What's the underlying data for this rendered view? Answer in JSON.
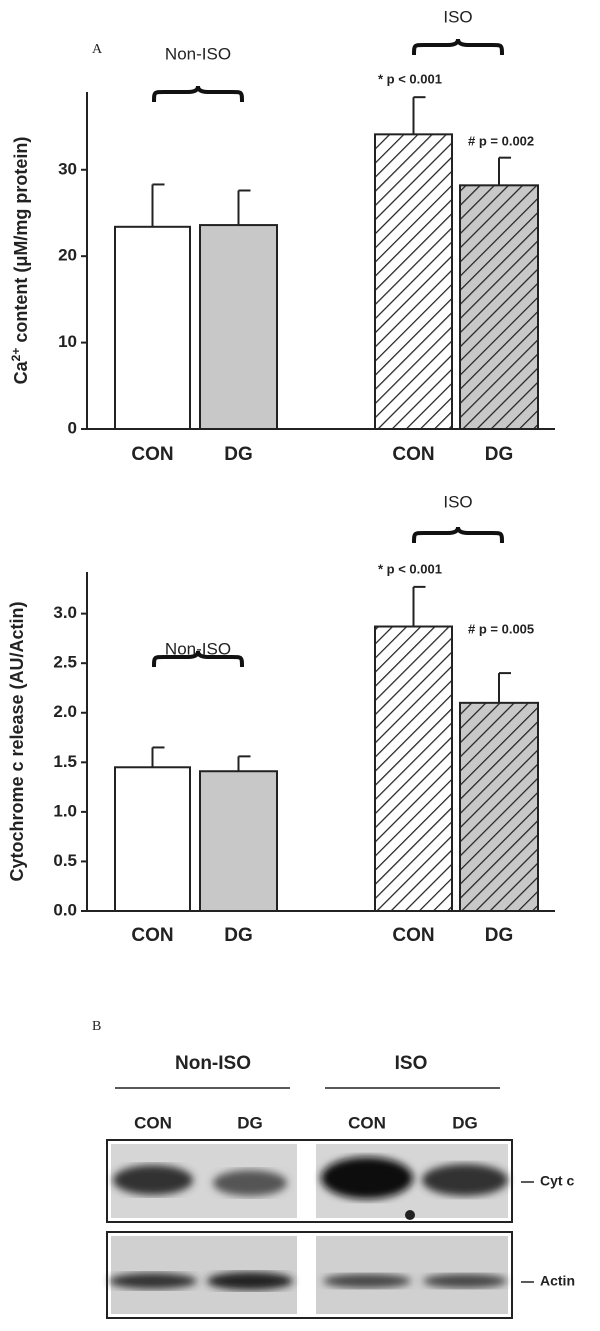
{
  "chart_data": [
    {
      "type": "bar",
      "panel_label": "A",
      "ylabel": [
        "Ca",
        "2+",
        " content (μM/mg protein)"
      ],
      "categories": [
        "CON",
        "DG",
        "CON",
        "DG"
      ],
      "values": [
        23.4,
        23.6,
        34.1,
        28.2
      ],
      "errors": [
        4.9,
        4.0,
        4.3,
        3.2
      ],
      "colors": [
        "#ffffff",
        "#c8c8c8",
        "#ffffff",
        "#c8c8c8"
      ],
      "hatched": [
        false,
        false,
        true,
        true
      ],
      "groups": [
        "Non-ISO",
        "ISO"
      ],
      "annotations": [
        "* p < 0.001",
        "# p = 0.002"
      ],
      "ylim": [
        0,
        39
      ],
      "yticks": [
        0,
        10,
        20,
        30
      ]
    },
    {
      "type": "bar",
      "ylabel": [
        "Cytochrome c release (AU/Actin)"
      ],
      "categories": [
        "CON",
        "DG",
        "CON",
        "DG"
      ],
      "values": [
        1.45,
        1.41,
        2.87,
        2.1
      ],
      "errors": [
        0.2,
        0.15,
        0.4,
        0.3
      ],
      "colors": [
        "#ffffff",
        "#c8c8c8",
        "#ffffff",
        "#c8c8c8"
      ],
      "hatched": [
        false,
        false,
        true,
        true
      ],
      "groups": [
        "Non-ISO",
        "ISO"
      ],
      "annotations": [
        "* p < 0.001",
        "# p = 0.005"
      ],
      "ylim": [
        0,
        3.42
      ],
      "yticks": [
        {
          "value": 0,
          "label": "0.0"
        },
        0.5,
        {
          "value": 1,
          "label": "1.0"
        },
        1.5,
        {
          "value": 2,
          "label": "2.0"
        },
        2.5,
        {
          "value": 3,
          "label": "3.0"
        }
      ]
    }
  ],
  "blot": {
    "panel_label": "B",
    "groups": [
      "Non-ISO",
      "ISO"
    ],
    "lanes": [
      "CON",
      "DG",
      "CON",
      "DG"
    ],
    "rows": [
      "Cyt c",
      "Actin"
    ]
  }
}
